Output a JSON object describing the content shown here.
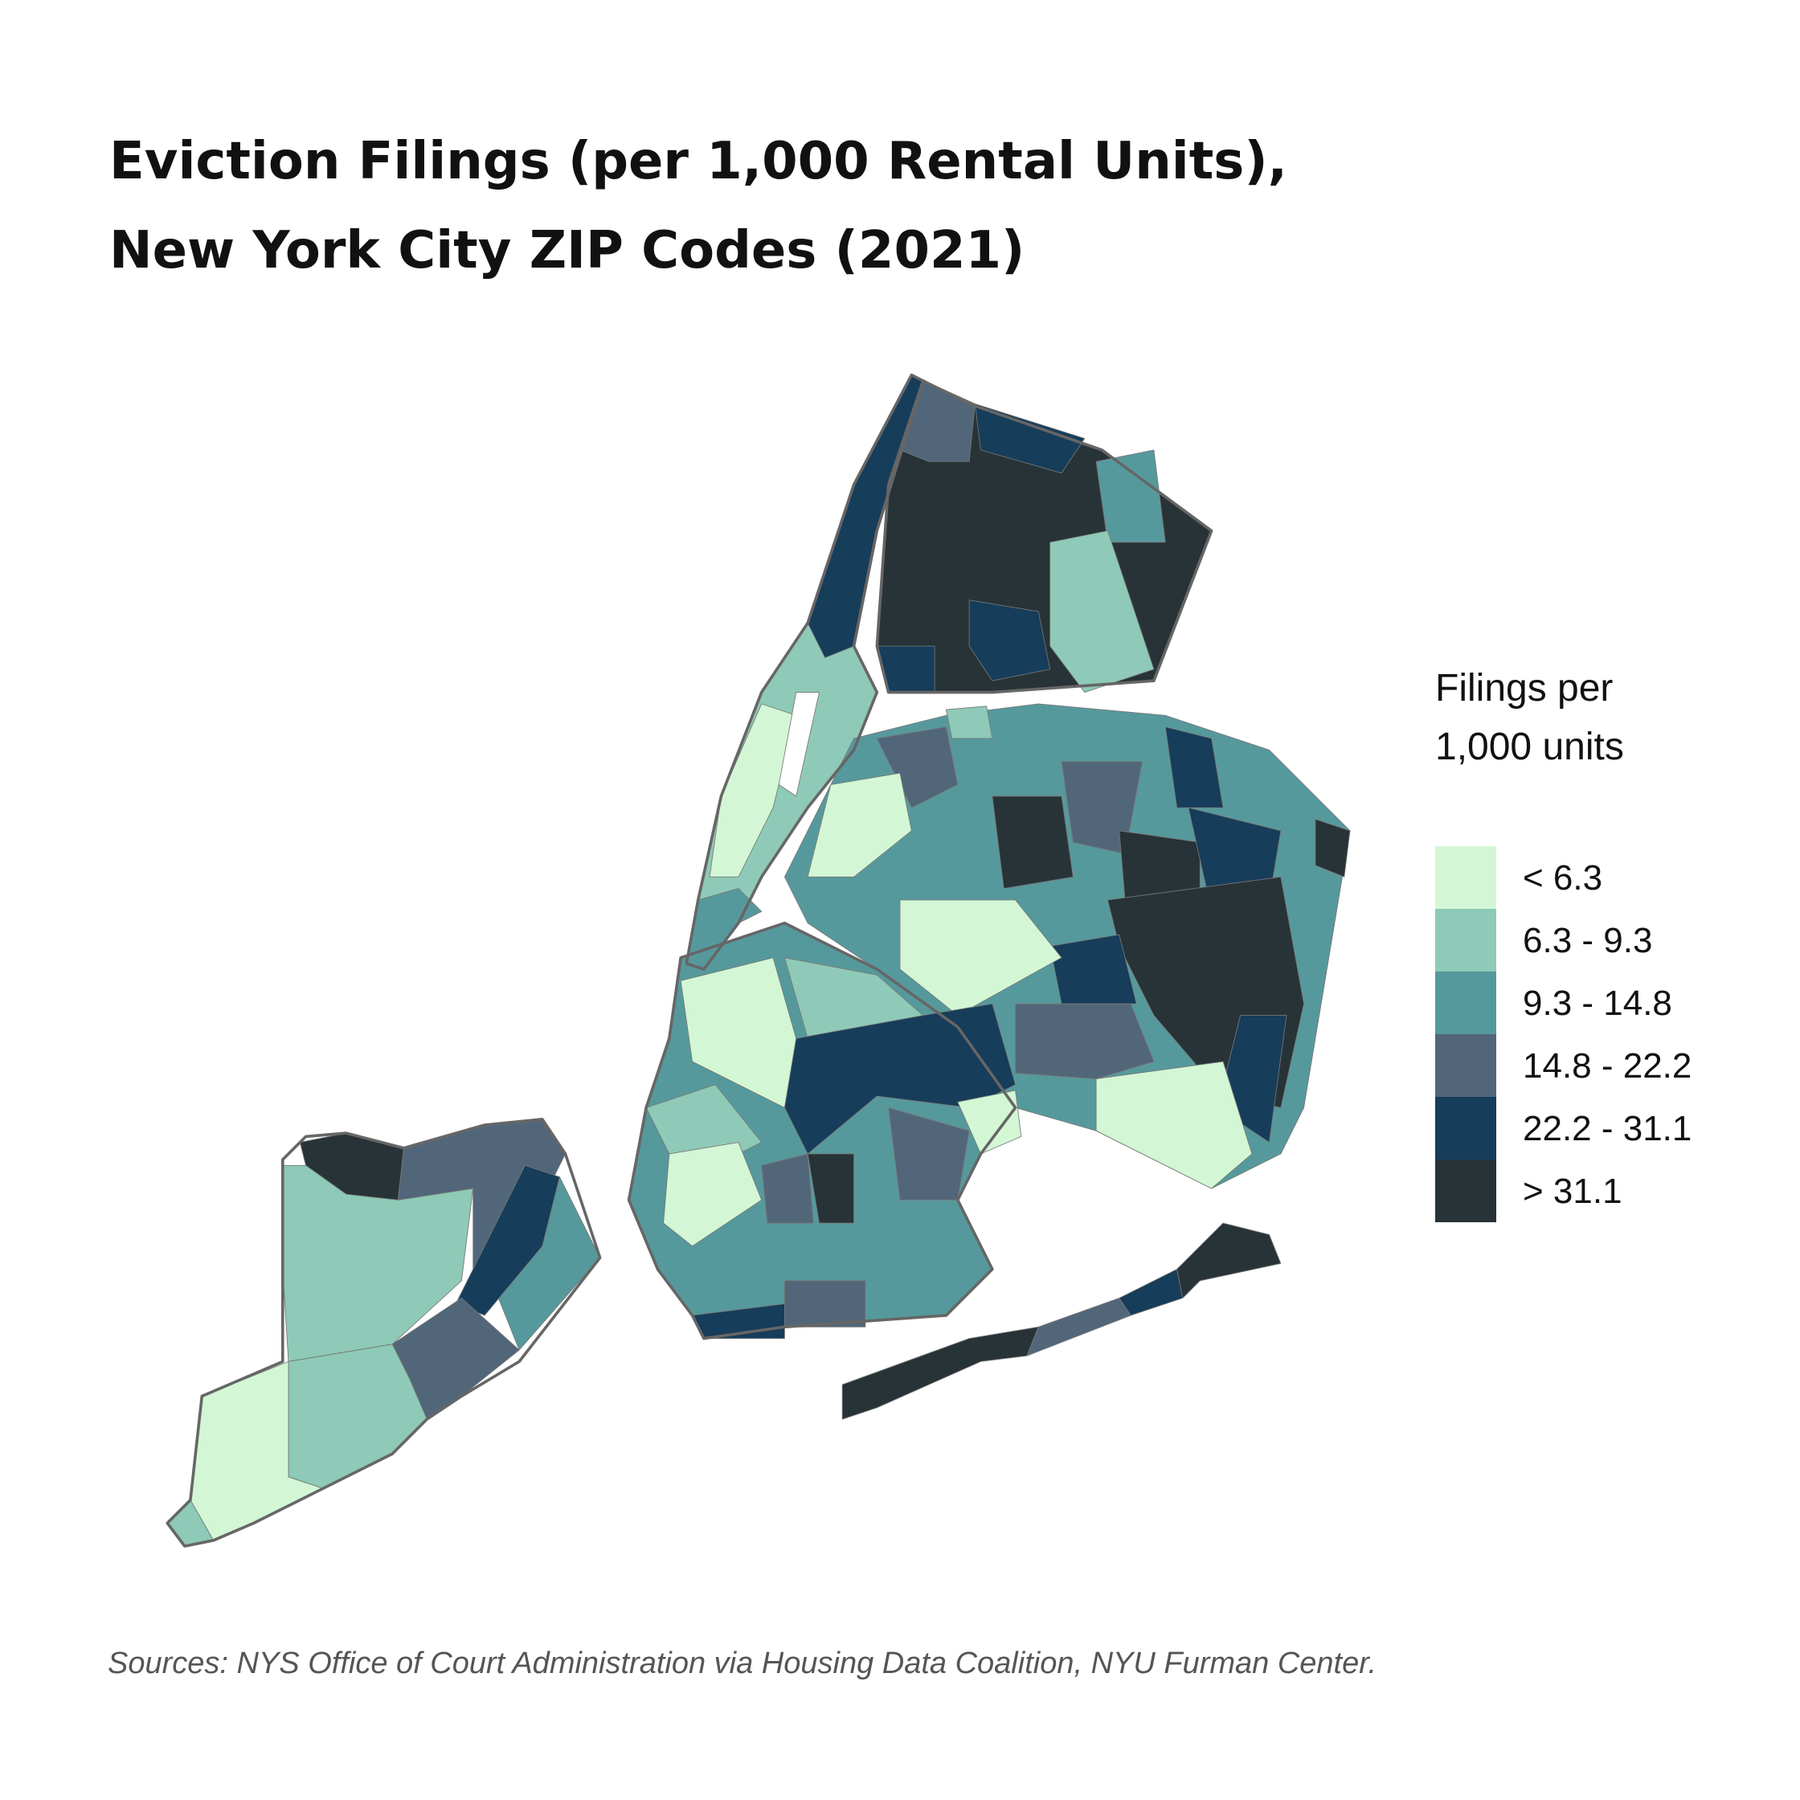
{
  "title": [
    "Eviction Filings (per 1,000 Rental Units),",
    "New York City ZIP Codes (2021)"
  ],
  "legend": {
    "title": [
      "Filings per",
      "1,000 units"
    ],
    "items": [
      {
        "label": "< 6.3",
        "color": "#d3f7d5"
      },
      {
        "label": "6.3 - 9.3",
        "color": "#8ecab7"
      },
      {
        "label": "9.3 - 14.8",
        "color": "#56999c"
      },
      {
        "label": "14.8 - 22.2",
        "color": "#52667a"
      },
      {
        "label": "22.2 - 31.1",
        "color": "#163d5a"
      },
      {
        "label": "> 31.1",
        "color": "#273337"
      }
    ]
  },
  "source": "Sources: NYS Office of Court Administration via Housing Data Coalition, NYU Furman Center."
}
